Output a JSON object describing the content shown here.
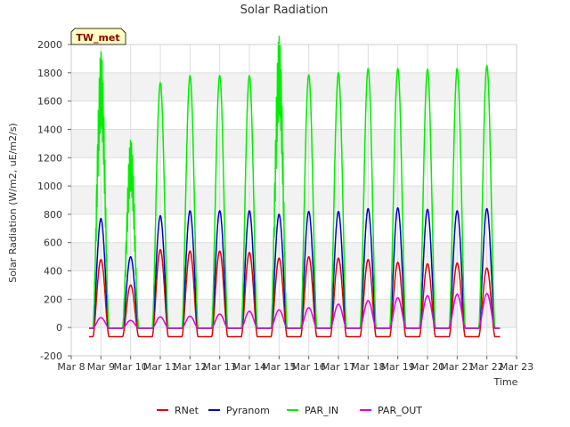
{
  "chart_data": {
    "type": "line",
    "title": "Solar Radiation",
    "xlabel": "Time",
    "ylabel": "Solar Radiation (W/m2, uE/m2/s)",
    "badge": "TW_met",
    "x_ticks": [
      "Mar 8",
      "Mar 9",
      "Mar 10",
      "Mar 11",
      "Mar 12",
      "Mar 13",
      "Mar 14",
      "Mar 15",
      "Mar 16",
      "Mar 17",
      "Mar 18",
      "Mar 19",
      "Mar 20",
      "Mar 21",
      "Mar 22",
      "Mar 23"
    ],
    "xlim": [
      8,
      23
    ],
    "ylim": [
      -200,
      2000
    ],
    "y_ticks": [
      -200,
      0,
      200,
      400,
      600,
      800,
      1000,
      1200,
      1400,
      1600,
      1800,
      2000
    ],
    "grid": true,
    "legend_position": "bottom",
    "days": [
      9,
      10,
      11,
      12,
      13,
      14,
      15,
      16,
      17,
      18,
      19,
      20,
      21,
      22
    ],
    "series": [
      {
        "name": "RNet",
        "color": "#dd0000",
        "night": -65,
        "daily_peaks": [
          480,
          300,
          550,
          540,
          540,
          530,
          490,
          500,
          490,
          480,
          460,
          450,
          455,
          420
        ]
      },
      {
        "name": "Pyranom",
        "color": "#0000cc",
        "night": -5,
        "daily_peaks": [
          770,
          500,
          790,
          825,
          825,
          825,
          800,
          820,
          820,
          840,
          845,
          835,
          825,
          840
        ]
      },
      {
        "name": "PAR_IN",
        "color": "#00ee00",
        "night": -5,
        "daily_peaks": [
          1710,
          1160,
          1730,
          1780,
          1780,
          1780,
          1780,
          1785,
          1800,
          1830,
          1830,
          1825,
          1830,
          1850
        ]
      },
      {
        "name": "PAR_OUT",
        "color": "#dd00dd",
        "night": -5,
        "daily_peaks": [
          70,
          50,
          75,
          80,
          95,
          115,
          125,
          140,
          165,
          190,
          210,
          225,
          235,
          240
        ]
      }
    ]
  }
}
